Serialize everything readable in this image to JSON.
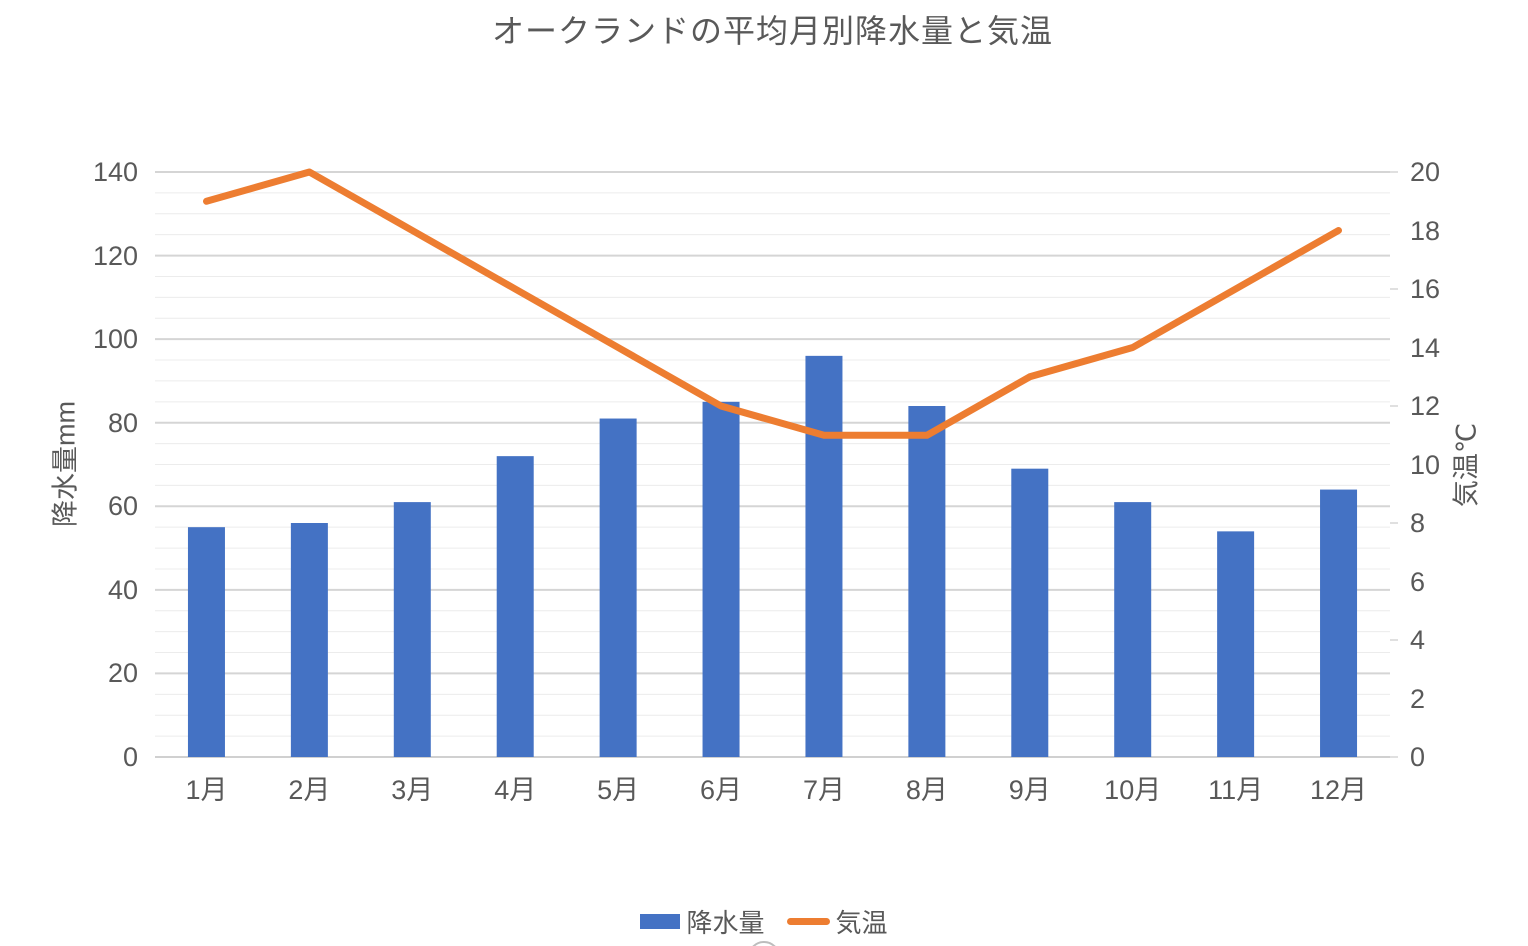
{
  "chart": {
    "title": "オークランドの平均月別降水量と気温",
    "left_axis": {
      "title": "降水量mm",
      "min": 0,
      "max": 140,
      "step": 20
    },
    "right_axis": {
      "title": "気温℃",
      "min": 0,
      "max": 20,
      "step": 2
    },
    "legend": [
      {
        "label": "降水量",
        "type": "bar",
        "color": "#4472C4"
      },
      {
        "label": "気温",
        "type": "line",
        "color": "#ED7D31"
      }
    ]
  },
  "chart_data": {
    "type": "bar+line combo",
    "title": "オークランドの平均月別降水量と気温",
    "categories": [
      "1月",
      "2月",
      "3月",
      "4月",
      "5月",
      "6月",
      "7月",
      "8月",
      "9月",
      "10月",
      "11月",
      "12月"
    ],
    "series": [
      {
        "name": "降水量",
        "type": "bar",
        "axis": "left",
        "unit": "mm",
        "color": "#4472C4",
        "values": [
          55,
          56,
          61,
          72,
          81,
          85,
          96,
          84,
          69,
          61,
          54,
          64
        ]
      },
      {
        "name": "気温",
        "type": "line",
        "axis": "right",
        "unit": "℃",
        "color": "#ED7D31",
        "values": [
          19,
          20,
          18,
          16,
          14,
          12,
          11,
          11,
          13,
          14,
          16,
          18
        ]
      }
    ],
    "left_ylabel": "降水量mm",
    "right_ylabel": "気温℃",
    "xlabel": "",
    "left_ylim": [
      0,
      140
    ],
    "right_ylim": [
      0,
      20
    ],
    "left_ticks": [
      0,
      20,
      40,
      60,
      80,
      100,
      120,
      140
    ],
    "right_ticks": [
      0,
      2,
      4,
      6,
      8,
      10,
      12,
      14,
      16,
      18,
      20
    ],
    "grid": {
      "horizontal_major_every_mm": 20,
      "horizontal_minor_every_mm": 5,
      "vertical": false
    },
    "legend_position": "bottom"
  },
  "colors": {
    "bar": "#4472C4",
    "line": "#ED7D31",
    "text": "#595959",
    "grid_major": "#D5D5D5",
    "grid_minor": "#ECECEC",
    "axis_line": "#D0D0D0",
    "arc": "#BDBDBD",
    "background": "#FFFFFF"
  }
}
